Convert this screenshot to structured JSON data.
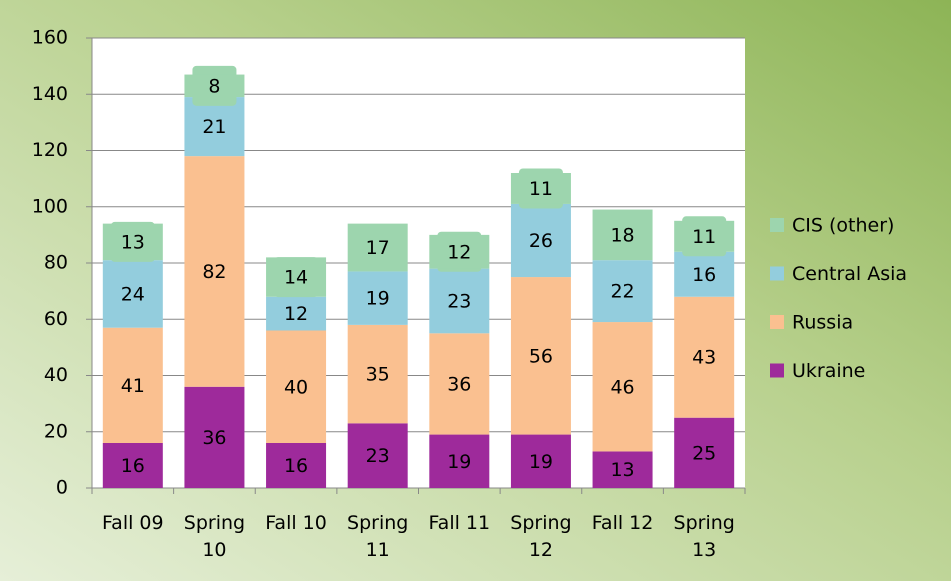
{
  "chart_data": {
    "type": "stacked_bar",
    "categories": [
      "Fall 09",
      "Spring 10",
      "Fall 10",
      "Spring 11",
      "Fall 11",
      "Spring 12",
      "Fall 12",
      "Spring 13"
    ],
    "series": [
      {
        "name": "Ukraine",
        "color": "#9e2a9b",
        "values": [
          16,
          36,
          16,
          23,
          19,
          19,
          13,
          25
        ]
      },
      {
        "name": "Russia",
        "color": "#fac090",
        "values": [
          41,
          82,
          40,
          35,
          36,
          56,
          46,
          43
        ]
      },
      {
        "name": "Central Asia",
        "color": "#93cddd",
        "values": [
          24,
          21,
          12,
          19,
          23,
          26,
          22,
          16
        ]
      },
      {
        "name": "CIS (other)",
        "color": "#9dd5ae",
        "values": [
          13,
          8,
          14,
          17,
          12,
          11,
          18,
          11
        ]
      }
    ],
    "ylim": [
      0,
      160
    ],
    "yticks": [
      0,
      20,
      40,
      60,
      80,
      100,
      120,
      140,
      160
    ],
    "grid": true,
    "legend": "right"
  }
}
